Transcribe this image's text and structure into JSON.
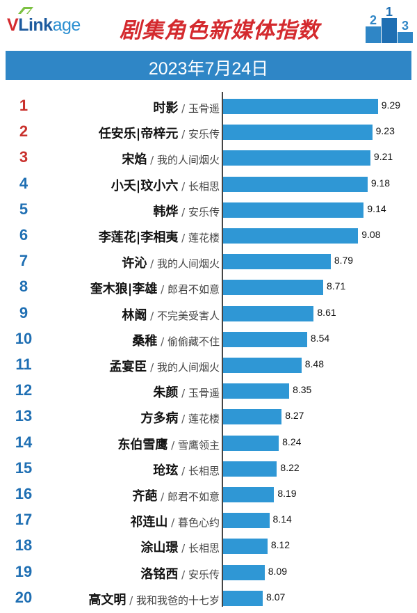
{
  "header": {
    "logo_v": "V",
    "logo_link": "Link",
    "logo_age": "age",
    "title": "剧集角色新媒体指数",
    "date": "2023年7月24日",
    "podium_numbers": [
      "2",
      "1",
      "3"
    ]
  },
  "colors": {
    "bar": "#2f97d5",
    "date_bar": "#2f86c6",
    "title": "#d42a2e",
    "top_rank": "#c9302c",
    "rank": "#1f6fb3"
  },
  "chart_data": {
    "type": "bar",
    "orientation": "horizontal",
    "title": "剧集角色新媒体指数",
    "subtitle": "2023年7月24日",
    "xlim": [
      7.65,
      9.38
    ],
    "ranks": [
      "1",
      "2",
      "3",
      "4",
      "5",
      "6",
      "7",
      "8",
      "9",
      "10",
      "11",
      "12",
      "13",
      "14",
      "15",
      "16",
      "17",
      "18",
      "19",
      "20"
    ],
    "roles": [
      "时影",
      "任安乐|帝梓元",
      "宋焰",
      "小夭|玟小六",
      "韩烨",
      "李莲花|李相夷",
      "许沁",
      "奎木狼|李雄",
      "林阚",
      "桑稚",
      "孟宴臣",
      "朱颜",
      "方多病",
      "东伯雪鹰",
      "玱玹",
      "齐葩",
      "祁连山",
      "涂山璟",
      "洛铭西",
      "高文明"
    ],
    "dramas": [
      "玉骨遥",
      "安乐传",
      "我的人间烟火",
      "长相思",
      "安乐传",
      "莲花楼",
      "我的人间烟火",
      "郎君不如意",
      "不完美受害人",
      "偷偷藏不住",
      "我的人间烟火",
      "玉骨遥",
      "莲花楼",
      "雪鹰领主",
      "长相思",
      "郎君不如意",
      "暮色心约",
      "长相思",
      "安乐传",
      "我和我爸的十七岁"
    ],
    "values": [
      9.29,
      9.23,
      9.21,
      9.18,
      9.14,
      9.08,
      8.79,
      8.71,
      8.61,
      8.54,
      8.48,
      8.35,
      8.27,
      8.24,
      8.22,
      8.19,
      8.14,
      8.12,
      8.09,
      8.07
    ],
    "separator": " / "
  }
}
